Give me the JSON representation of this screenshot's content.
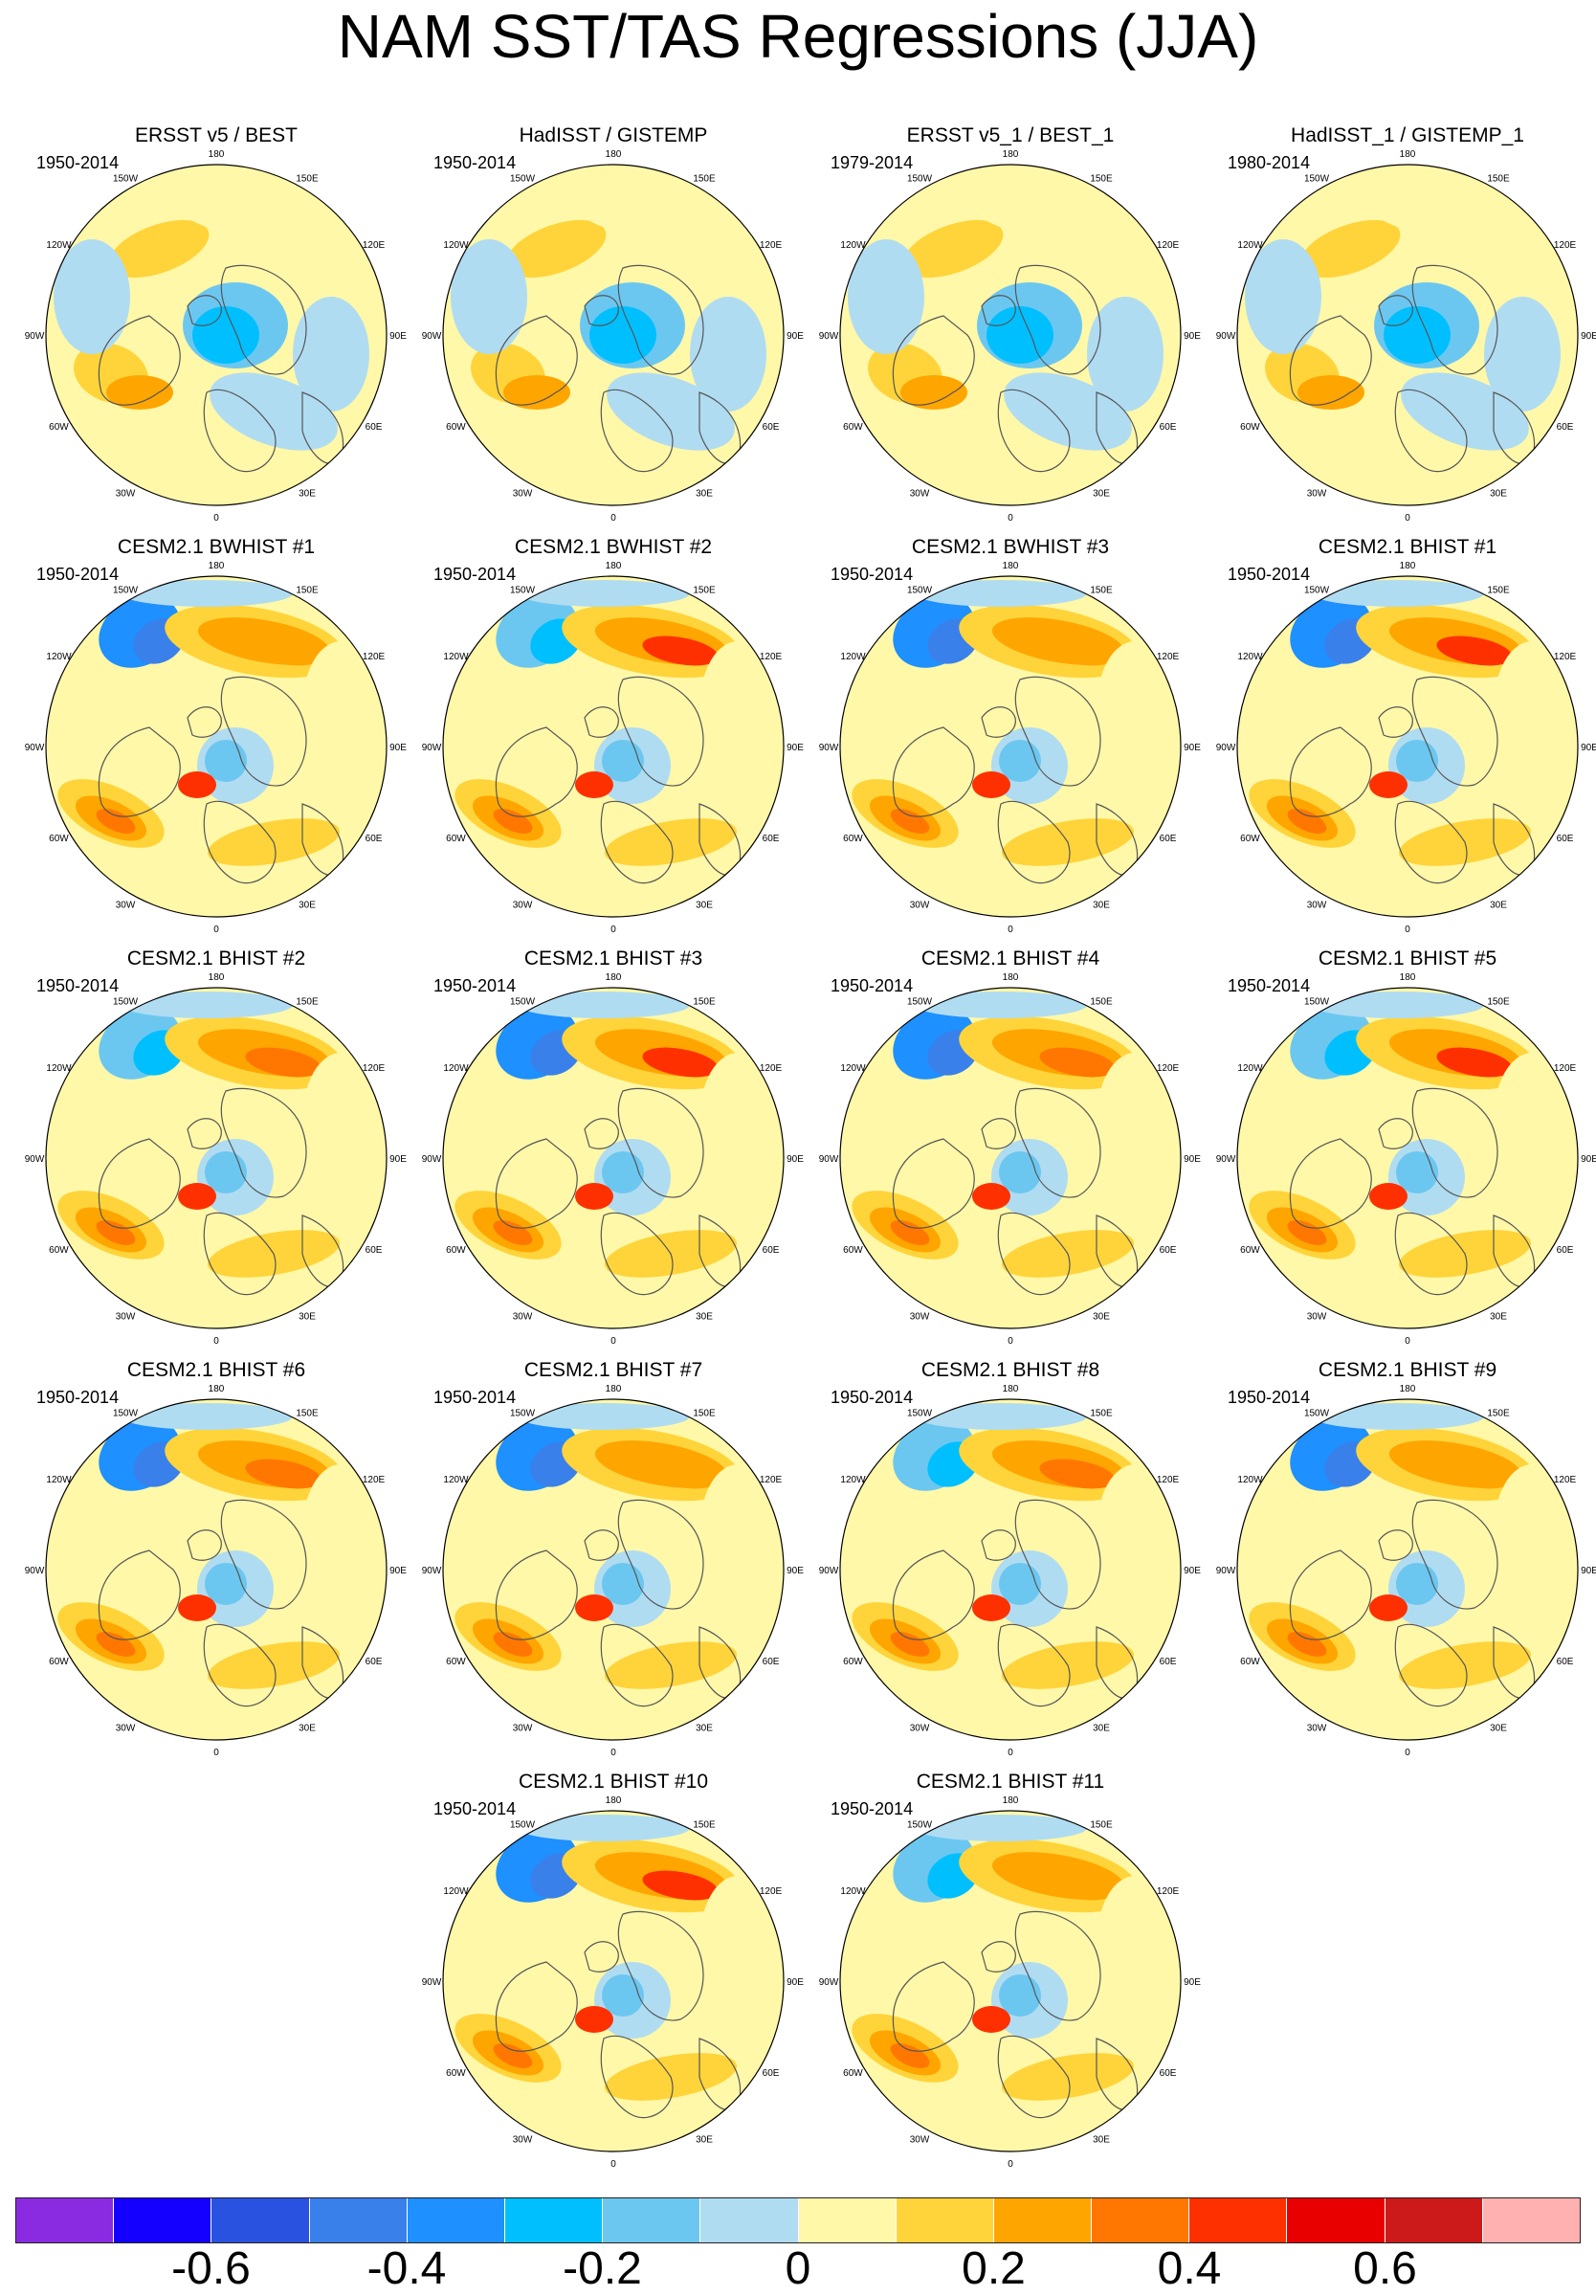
{
  "title": "NAM SST/TAS Regressions (JJA)",
  "panels": [
    {
      "title": "ERSST v5 / BEST",
      "period": "1950-2014"
    },
    {
      "title": "HadISST / GISTEMP",
      "period": "1950-2014"
    },
    {
      "title": "ERSST v5_1 / BEST_1",
      "period": "1979-2014"
    },
    {
      "title": "HadISST_1 / GISTEMP_1",
      "period": "1980-2014"
    },
    {
      "title": "CESM2.1 BWHIST #1",
      "period": "1950-2014"
    },
    {
      "title": "CESM2.1 BWHIST #2",
      "period": "1950-2014"
    },
    {
      "title": "CESM2.1 BWHIST #3",
      "period": "1950-2014"
    },
    {
      "title": "CESM2.1 BHIST #1",
      "period": "1950-2014"
    },
    {
      "title": "CESM2.1 BHIST #2",
      "period": "1950-2014"
    },
    {
      "title": "CESM2.1 BHIST #3",
      "period": "1950-2014"
    },
    {
      "title": "CESM2.1 BHIST #4",
      "period": "1950-2014"
    },
    {
      "title": "CESM2.1 BHIST #5",
      "period": "1950-2014"
    },
    {
      "title": "CESM2.1 BHIST #6",
      "period": "1950-2014"
    },
    {
      "title": "CESM2.1 BHIST #7",
      "period": "1950-2014"
    },
    {
      "title": "CESM2.1 BHIST #8",
      "period": "1950-2014"
    },
    {
      "title": "CESM2.1 BHIST #9",
      "period": "1950-2014"
    },
    {
      "title": "CESM2.1 BHIST #10",
      "period": "1950-2014"
    },
    {
      "title": "CESM2.1 BHIST #11",
      "period": "1950-2014"
    }
  ],
  "longitude_labels": {
    "lon_180": "180",
    "lon_150e": "150E",
    "lon_120e": "120E",
    "lon_90e": "90E",
    "lon_60e": "60E",
    "lon_30e": "30E",
    "lon_0": "0",
    "lon_30w": "30W",
    "lon_60w": "60W",
    "lon_90w": "90W",
    "lon_120w": "120W",
    "lon_150w": "150W"
  },
  "colorbar": {
    "colors": [
      "#8a2be2",
      "#1400ff",
      "#2a52e0",
      "#3a80ea",
      "#1e90ff",
      "#00bfff",
      "#6cc7f0",
      "#b0dcf2",
      "#fff8a8",
      "#ffd43a",
      "#ffa500",
      "#ff7700",
      "#ff3000",
      "#e80000",
      "#cc1a1a",
      "#ffb0b0"
    ],
    "labels": [
      "-0.6",
      "-0.4",
      "-0.2",
      "0",
      "0.2",
      "0.4",
      "0.6"
    ]
  },
  "map_colors": {
    "land": "#ffffff",
    "coast": "#555555",
    "neutral_pos": "#fff8a8",
    "neutral_neg": "#b0dcf2"
  }
}
